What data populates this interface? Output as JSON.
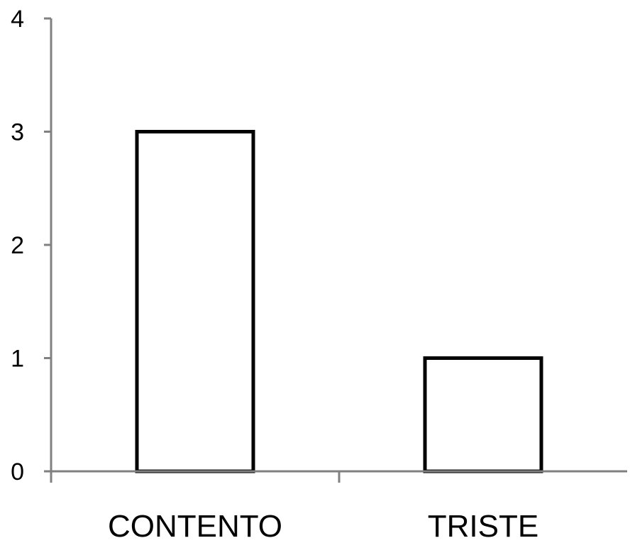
{
  "chart_data": {
    "type": "bar",
    "categories": [
      "CONTENTO",
      "TRISTE"
    ],
    "values": [
      3,
      1
    ],
    "ylim": [
      0,
      4
    ],
    "yticks": [
      0,
      1,
      2,
      3,
      4
    ],
    "grid": false,
    "legend": "none",
    "colors": {
      "bar_fill": "#ffffff",
      "bar_stroke": "#000000",
      "axis": "#808080"
    }
  }
}
